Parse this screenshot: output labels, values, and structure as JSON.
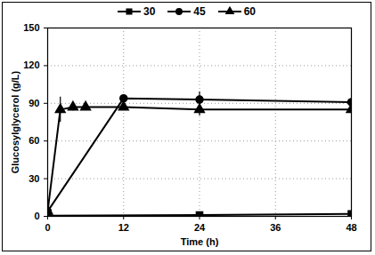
{
  "chart_data": {
    "type": "line",
    "x_label": "Time (h)",
    "y_label": "Glucosylglycerol (g/L)",
    "xlim": [
      0,
      48
    ],
    "xticks": [
      0,
      12,
      24,
      36,
      48
    ],
    "ylim": [
      0,
      150
    ],
    "yticks": [
      0,
      30,
      60,
      90,
      120,
      150
    ],
    "grid": true,
    "legend": "top",
    "series": [
      {
        "name": "30",
        "color": "#000000",
        "marker": "square",
        "x": [
          0,
          24,
          48
        ],
        "values": [
          0.5,
          1,
          2
        ],
        "errors": [
          0,
          0,
          0
        ]
      },
      {
        "name": "45",
        "color": "#000000",
        "marker": "circle",
        "x": [
          0,
          12,
          24,
          48
        ],
        "values": [
          4,
          94,
          93,
          91
        ],
        "errors": [
          0,
          2,
          6,
          3
        ]
      },
      {
        "name": "60",
        "color": "#000000",
        "marker": "triangle",
        "x": [
          0,
          2,
          4,
          6,
          12,
          24,
          48
        ],
        "values": [
          4,
          85,
          87,
          87,
          87,
          85,
          85
        ],
        "errors": [
          0,
          10,
          3,
          2,
          2,
          5,
          3
        ]
      }
    ]
  }
}
